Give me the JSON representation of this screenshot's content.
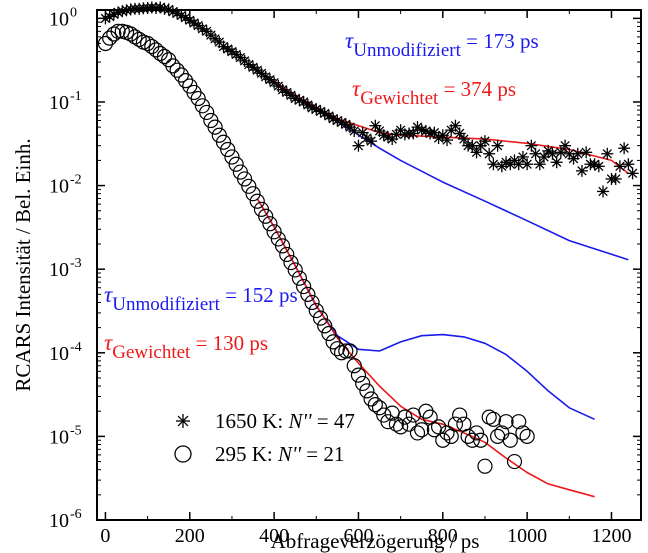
{
  "chart_data": {
    "type": "scatter",
    "xlabel": "Abfrageverzögerung / ps",
    "ylabel": "RCARS Intensität / Bel. Einh.",
    "xlim": [
      -20,
      1270
    ],
    "ylim_log10": [
      -6,
      0.1
    ],
    "y_scale": "log",
    "x_ticks": [
      0,
      200,
      400,
      600,
      800,
      1000,
      1200
    ],
    "x_tick_labels": [
      "0",
      "200",
      "400",
      "600",
      "800",
      "1000",
      "1200"
    ],
    "y_ticks_exp": [
      -6,
      -5,
      -4,
      -3,
      -2,
      -1,
      0
    ],
    "y_tick_base": "10",
    "colors": {
      "unmodified": "#1a1aee",
      "weighted": "#ee1a1a",
      "data": "#000000"
    },
    "legend": {
      "placement": "bottom-left",
      "entries": [
        {
          "marker": "asterisk",
          "label": "1650 K: ",
          "label_italic": "N''",
          "label_rest": " = 47"
        },
        {
          "marker": "circle",
          "label": "295 K: ",
          "label_italic": "N''",
          "label_rest": " = 21"
        }
      ]
    },
    "annotations": {
      "hot_unmod": {
        "tau": "τ",
        "sub": "Unmodifiziert",
        "rest": " = 173 ps",
        "color": "#1a1aee"
      },
      "hot_weight": {
        "tau": "τ",
        "sub": "Gewichtet",
        "rest": " = 374 ps",
        "color": "#ee1a1a"
      },
      "cold_unmod": {
        "tau": "τ",
        "sub": "Unmodifiziert",
        "rest": " = 152 ps",
        "color": "#1a1aee"
      },
      "cold_weight": {
        "tau": "τ",
        "sub": "Gewichtet",
        "rest": " = 130 ps",
        "color": "#ee1a1a"
      }
    },
    "series": [
      {
        "name": "1650 K: N'' = 47",
        "marker": "asterisk",
        "points": [
          [
            0,
            1.0
          ],
          [
            10,
            1.05
          ],
          [
            20,
            1.12
          ],
          [
            30,
            1.18
          ],
          [
            40,
            1.22
          ],
          [
            50,
            1.25
          ],
          [
            60,
            1.28
          ],
          [
            70,
            1.3
          ],
          [
            80,
            1.3
          ],
          [
            90,
            1.32
          ],
          [
            100,
            1.33
          ],
          [
            110,
            1.35
          ],
          [
            120,
            1.33
          ],
          [
            130,
            1.35
          ],
          [
            140,
            1.3
          ],
          [
            150,
            1.28
          ],
          [
            160,
            1.2
          ],
          [
            170,
            1.15
          ],
          [
            180,
            1.08
          ],
          [
            190,
            1.02
          ],
          [
            200,
            0.95
          ],
          [
            210,
            0.88
          ],
          [
            220,
            0.82
          ],
          [
            230,
            0.75
          ],
          [
            240,
            0.7
          ],
          [
            250,
            0.63
          ],
          [
            260,
            0.57
          ],
          [
            270,
            0.52
          ],
          [
            280,
            0.46
          ],
          [
            290,
            0.43
          ],
          [
            300,
            0.4
          ],
          [
            310,
            0.37
          ],
          [
            320,
            0.34
          ],
          [
            330,
            0.31
          ],
          [
            340,
            0.28
          ],
          [
            350,
            0.26
          ],
          [
            360,
            0.24
          ],
          [
            370,
            0.22
          ],
          [
            380,
            0.2
          ],
          [
            390,
            0.185
          ],
          [
            400,
            0.17
          ],
          [
            410,
            0.155
          ],
          [
            420,
            0.14
          ],
          [
            430,
            0.13
          ],
          [
            440,
            0.12
          ],
          [
            450,
            0.11
          ],
          [
            460,
            0.105
          ],
          [
            470,
            0.1
          ],
          [
            480,
            0.092
          ],
          [
            490,
            0.085
          ],
          [
            500,
            0.082
          ],
          [
            510,
            0.077
          ],
          [
            520,
            0.073
          ],
          [
            530,
            0.068
          ],
          [
            540,
            0.063
          ],
          [
            550,
            0.06
          ],
          [
            560,
            0.057
          ],
          [
            570,
            0.054
          ],
          [
            580,
            0.05
          ],
          [
            590,
            0.045
          ],
          [
            600,
            0.03
          ],
          [
            610,
            0.043
          ],
          [
            620,
            0.037
          ],
          [
            630,
            0.034
          ],
          [
            640,
            0.052
          ],
          [
            650,
            0.045
          ],
          [
            660,
            0.04
          ],
          [
            670,
            0.038
          ],
          [
            680,
            0.036
          ],
          [
            690,
            0.041
          ],
          [
            700,
            0.046
          ],
          [
            710,
            0.041
          ],
          [
            720,
            0.042
          ],
          [
            730,
            0.042
          ],
          [
            740,
            0.05
          ],
          [
            750,
            0.046
          ],
          [
            760,
            0.045
          ],
          [
            770,
            0.042
          ],
          [
            780,
            0.043
          ],
          [
            790,
            0.037
          ],
          [
            800,
            0.04
          ],
          [
            810,
            0.035
          ],
          [
            820,
            0.046
          ],
          [
            830,
            0.052
          ],
          [
            840,
            0.042
          ],
          [
            850,
            0.036
          ],
          [
            860,
            0.03
          ],
          [
            870,
            0.03
          ],
          [
            880,
            0.025
          ],
          [
            890,
            0.03
          ],
          [
            900,
            0.034
          ],
          [
            910,
            0.024
          ],
          [
            920,
            0.018
          ],
          [
            930,
            0.03
          ],
          [
            940,
            0.017
          ],
          [
            950,
            0.019
          ],
          [
            960,
            0.018
          ],
          [
            970,
            0.02
          ],
          [
            980,
            0.018
          ],
          [
            990,
            0.022
          ],
          [
            1000,
            0.018
          ],
          [
            1010,
            0.03
          ],
          [
            1020,
            0.024
          ],
          [
            1030,
            0.018
          ],
          [
            1040,
            0.022
          ],
          [
            1050,
            0.026
          ],
          [
            1060,
            0.024
          ],
          [
            1070,
            0.019
          ],
          [
            1080,
            0.025
          ],
          [
            1090,
            0.03
          ],
          [
            1100,
            0.024
          ],
          [
            1110,
            0.021
          ],
          [
            1120,
            0.024
          ],
          [
            1130,
            0.015
          ],
          [
            1140,
            0.025
          ],
          [
            1150,
            0.018
          ],
          [
            1160,
            0.018
          ],
          [
            1170,
            0.017
          ],
          [
            1180,
            0.0085
          ],
          [
            1190,
            0.024
          ],
          [
            1200,
            0.012
          ],
          [
            1210,
            0.012
          ],
          [
            1220,
            0.017
          ],
          [
            1230,
            0.028
          ],
          [
            1240,
            0.018
          ],
          [
            1250,
            0.014
          ]
        ]
      },
      {
        "name": "295 K: N'' = 21",
        "marker": "circle",
        "points": [
          [
            0,
            0.5
          ],
          [
            10,
            0.58
          ],
          [
            20,
            0.65
          ],
          [
            30,
            0.7
          ],
          [
            40,
            0.7
          ],
          [
            50,
            0.68
          ],
          [
            60,
            0.65
          ],
          [
            70,
            0.6
          ],
          [
            80,
            0.56
          ],
          [
            90,
            0.52
          ],
          [
            100,
            0.5
          ],
          [
            110,
            0.46
          ],
          [
            120,
            0.42
          ],
          [
            130,
            0.38
          ],
          [
            140,
            0.35
          ],
          [
            150,
            0.32
          ],
          [
            160,
            0.27
          ],
          [
            170,
            0.24
          ],
          [
            180,
            0.21
          ],
          [
            190,
            0.18
          ],
          [
            200,
            0.155
          ],
          [
            210,
            0.13
          ],
          [
            220,
            0.11
          ],
          [
            230,
            0.09
          ],
          [
            240,
            0.075
          ],
          [
            250,
            0.06
          ],
          [
            260,
            0.05
          ],
          [
            270,
            0.04
          ],
          [
            280,
            0.033
          ],
          [
            290,
            0.027
          ],
          [
            300,
            0.022
          ],
          [
            310,
            0.018
          ],
          [
            320,
            0.0145
          ],
          [
            330,
            0.012
          ],
          [
            340,
            0.0098
          ],
          [
            350,
            0.008
          ],
          [
            360,
            0.0065
          ],
          [
            370,
            0.0052
          ],
          [
            380,
            0.0043
          ],
          [
            390,
            0.0035
          ],
          [
            400,
            0.0028
          ],
          [
            410,
            0.0023
          ],
          [
            420,
            0.0019
          ],
          [
            430,
            0.0015
          ],
          [
            440,
            0.0012
          ],
          [
            450,
            0.00098
          ],
          [
            460,
            0.00078
          ],
          [
            470,
            0.00062
          ],
          [
            480,
            0.0005
          ],
          [
            490,
            0.0004
          ],
          [
            500,
            0.00032
          ],
          [
            510,
            0.00026
          ],
          [
            520,
            0.00021
          ],
          [
            530,
            0.00017
          ],
          [
            540,
            0.000135
          ],
          [
            550,
            0.000112
          ],
          [
            560,
            0.0001
          ],
          [
            570,
            0.000105
          ],
          [
            580,
            0.000105
          ],
          [
            590,
            7e-05
          ],
          [
            600,
            5.4e-05
          ],
          [
            610,
            4.3e-05
          ],
          [
            620,
            3.5e-05
          ],
          [
            630,
            2.8e-05
          ],
          [
            640,
            2.4e-05
          ],
          [
            650,
            2.2e-05
          ],
          [
            660,
            1.8e-05
          ],
          [
            670,
            1.5e-05
          ],
          [
            680,
            1.9e-05
          ],
          [
            690,
            1.4e-05
          ],
          [
            700,
            1.3e-05
          ],
          [
            710,
            1.7e-05
          ],
          [
            720,
            1.4e-05
          ],
          [
            730,
            1.8e-05
          ],
          [
            740,
            1.1e-05
          ],
          [
            750,
            1.2e-05
          ],
          [
            760,
            2e-05
          ],
          [
            770,
            1.7e-05
          ],
          [
            780,
            1.2e-05
          ],
          [
            790,
            1.3e-05
          ],
          [
            800,
            9e-06
          ],
          [
            810,
            1.1e-05
          ],
          [
            820,
            1e-05
          ],
          [
            830,
            1.4e-05
          ],
          [
            840,
            1.8e-05
          ],
          [
            850,
            1.4e-05
          ],
          [
            860,
            1e-05
          ],
          [
            870,
            9e-06
          ],
          [
            880,
            1.1e-05
          ],
          [
            890,
            9e-06
          ],
          [
            900,
            4.4e-06
          ],
          [
            910,
            1.7e-05
          ],
          [
            920,
            1.6e-05
          ],
          [
            930,
            1e-05
          ],
          [
            940,
            1.1e-05
          ],
          [
            950,
            1.5e-05
          ],
          [
            960,
            9e-06
          ],
          [
            970,
            5e-06
          ],
          [
            980,
            1.5e-05
          ],
          [
            990,
            1.1e-05
          ],
          [
            1000,
            1e-05
          ]
        ]
      }
    ],
    "fits": [
      {
        "name": "1650 K Unmodifiziert fit",
        "color": "#1a1aee",
        "points": [
          [
            360,
            0.23
          ],
          [
            450,
            0.118
          ],
          [
            550,
            0.058
          ],
          [
            650,
            0.028
          ],
          [
            700,
            0.02
          ],
          [
            800,
            0.011
          ],
          [
            900,
            0.0065
          ],
          [
            1000,
            0.0038
          ],
          [
            1100,
            0.0022
          ],
          [
            1240,
            0.0013
          ]
        ]
      },
      {
        "name": "1650 K Gewichtet fit",
        "color": "#ee1a1a",
        "points": [
          [
            360,
            0.24
          ],
          [
            450,
            0.12
          ],
          [
            550,
            0.063
          ],
          [
            650,
            0.043
          ],
          [
            700,
            0.04
          ],
          [
            800,
            0.038
          ],
          [
            900,
            0.036
          ],
          [
            1000,
            0.032
          ],
          [
            1100,
            0.027
          ],
          [
            1200,
            0.02
          ],
          [
            1240,
            0.014
          ]
        ]
      },
      {
        "name": "295 K Unmodifiziert fit",
        "color": "#1a1aee",
        "points": [
          [
            360,
            0.007
          ],
          [
            400,
            0.0032
          ],
          [
            450,
            0.0011
          ],
          [
            500,
            0.00036
          ],
          [
            550,
            0.00016
          ],
          [
            600,
            0.00011
          ],
          [
            650,
            0.000105
          ],
          [
            700,
            0.000135
          ],
          [
            750,
            0.00016
          ],
          [
            800,
            0.000165
          ],
          [
            850,
            0.000155
          ],
          [
            900,
            0.00013
          ],
          [
            950,
            9.5e-05
          ],
          [
            1000,
            6e-05
          ],
          [
            1050,
            3.5e-05
          ],
          [
            1100,
            2.2e-05
          ],
          [
            1160,
            1.6e-05
          ]
        ]
      },
      {
        "name": "295 K Gewichtet fit",
        "color": "#ee1a1a",
        "points": [
          [
            360,
            0.007
          ],
          [
            400,
            0.0032
          ],
          [
            450,
            0.0011
          ],
          [
            500,
            0.00037
          ],
          [
            550,
            0.00015
          ],
          [
            600,
            7.5e-05
          ],
          [
            650,
            4e-05
          ],
          [
            700,
            2.3e-05
          ],
          [
            750,
            1.6e-05
          ],
          [
            800,
            1.4e-05
          ],
          [
            850,
            1.1e-05
          ],
          [
            900,
            8.5e-06
          ],
          [
            950,
            5.5e-06
          ],
          [
            1000,
            3.7e-06
          ],
          [
            1050,
            2.7e-06
          ],
          [
            1100,
            2.3e-06
          ],
          [
            1160,
            1.9e-06
          ]
        ]
      }
    ]
  }
}
